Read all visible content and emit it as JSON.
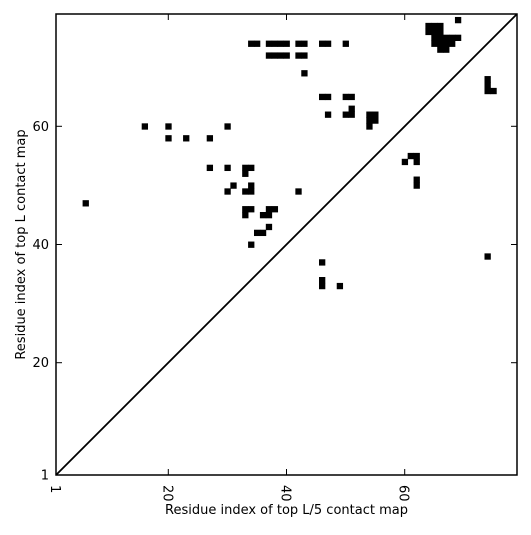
{
  "chart_data": {
    "type": "scatter",
    "marker": "square",
    "xlabel": "Residue index of top L/5 contact map",
    "ylabel": "Residue index of top L contact map",
    "xlim": [
      1,
      79
    ],
    "ylim": [
      1,
      79
    ],
    "xticks": [
      1,
      20,
      40,
      60
    ],
    "yticks": [
      1,
      20,
      40,
      60
    ],
    "xtick_labels": [
      "1",
      "20",
      "40",
      "60"
    ],
    "ytick_labels": [
      "1",
      "20",
      "40",
      "60"
    ],
    "diagonal": true,
    "grid": false,
    "series": [
      {
        "color": "#000000",
        "points": [
          [
            34,
            74
          ],
          [
            35,
            74
          ],
          [
            37,
            74
          ],
          [
            38,
            74
          ],
          [
            39,
            74
          ],
          [
            40,
            74
          ],
          [
            42,
            74
          ],
          [
            43,
            74
          ],
          [
            46,
            74
          ],
          [
            47,
            74
          ],
          [
            50,
            74
          ],
          [
            37,
            72
          ],
          [
            38,
            72
          ],
          [
            39,
            72
          ],
          [
            40,
            72
          ],
          [
            42,
            72
          ],
          [
            43,
            72
          ],
          [
            43,
            69
          ],
          [
            46,
            65
          ],
          [
            47,
            65
          ],
          [
            50,
            65
          ],
          [
            51,
            65
          ],
          [
            47,
            62
          ],
          [
            50,
            62
          ],
          [
            51,
            62
          ],
          [
            51,
            63
          ],
          [
            54,
            62
          ],
          [
            55,
            62
          ],
          [
            54,
            61
          ],
          [
            55,
            61
          ],
          [
            54,
            60
          ],
          [
            16,
            60
          ],
          [
            20,
            60
          ],
          [
            30,
            60
          ],
          [
            20,
            58
          ],
          [
            23,
            58
          ],
          [
            27,
            58
          ],
          [
            27,
            53
          ],
          [
            30,
            53
          ],
          [
            33,
            53
          ],
          [
            34,
            53
          ],
          [
            33,
            52
          ],
          [
            31,
            50
          ],
          [
            34,
            50
          ],
          [
            30,
            49
          ],
          [
            33,
            49
          ],
          [
            34,
            49
          ],
          [
            42,
            49
          ],
          [
            6,
            47
          ],
          [
            33,
            46
          ],
          [
            34,
            46
          ],
          [
            33,
            45
          ],
          [
            36,
            45
          ],
          [
            37,
            45
          ],
          [
            37,
            46
          ],
          [
            38,
            46
          ],
          [
            37,
            43
          ],
          [
            35,
            42
          ],
          [
            36,
            42
          ],
          [
            34,
            40
          ],
          [
            46,
            37
          ],
          [
            46,
            34
          ],
          [
            46,
            33
          ],
          [
            49,
            33
          ],
          [
            60,
            54
          ],
          [
            61,
            55
          ],
          [
            62,
            55
          ],
          [
            62,
            54
          ],
          [
            62,
            51
          ],
          [
            62,
            50
          ],
          [
            64,
            77
          ],
          [
            65,
            77
          ],
          [
            66,
            77
          ],
          [
            64,
            76
          ],
          [
            65,
            76
          ],
          [
            66,
            76
          ],
          [
            65,
            75
          ],
          [
            66,
            75
          ],
          [
            67,
            75
          ],
          [
            68,
            75
          ],
          [
            69,
            75
          ],
          [
            65,
            74
          ],
          [
            66,
            74
          ],
          [
            67,
            74
          ],
          [
            68,
            74
          ],
          [
            66,
            73
          ],
          [
            67,
            73
          ],
          [
            69,
            78
          ],
          [
            74,
            68
          ],
          [
            74,
            67
          ],
          [
            74,
            66
          ],
          [
            75,
            66
          ],
          [
            74,
            38
          ]
        ]
      }
    ]
  }
}
